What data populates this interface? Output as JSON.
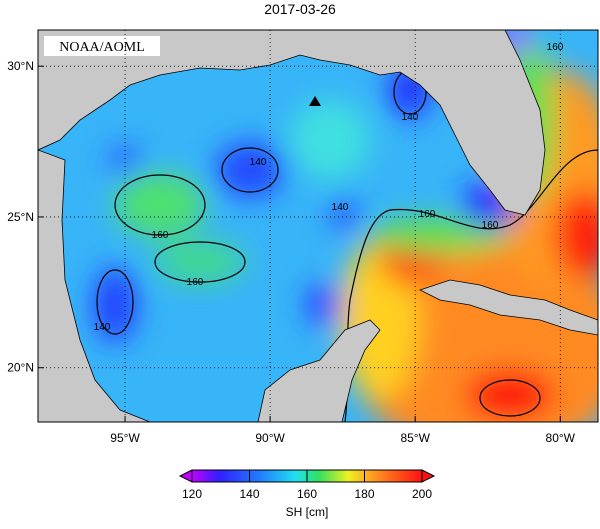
{
  "title": "2017-03-26",
  "credit": "NOAA/AOML",
  "map": {
    "lon_range": [
      -98,
      -78.7
    ],
    "lat_range": [
      18.2,
      31.2
    ],
    "lon_ticks": [
      {
        "value": -95,
        "label": "95°W"
      },
      {
        "value": -90,
        "label": "90°W"
      },
      {
        "value": -85,
        "label": "85°W"
      },
      {
        "value": -80,
        "label": "80°W"
      }
    ],
    "lat_ticks": [
      {
        "value": 20,
        "label": "20°N"
      },
      {
        "value": 25,
        "label": "25°N"
      },
      {
        "value": 30,
        "label": "30°N"
      }
    ],
    "contour_labels": [
      "160",
      "140",
      "160",
      "140",
      "160",
      "140",
      "160",
      "160",
      "140"
    ]
  },
  "colorbar": {
    "label": "SH [cm]",
    "range": [
      120,
      200
    ],
    "ticks": [
      120,
      140,
      160,
      180,
      200
    ]
  }
}
